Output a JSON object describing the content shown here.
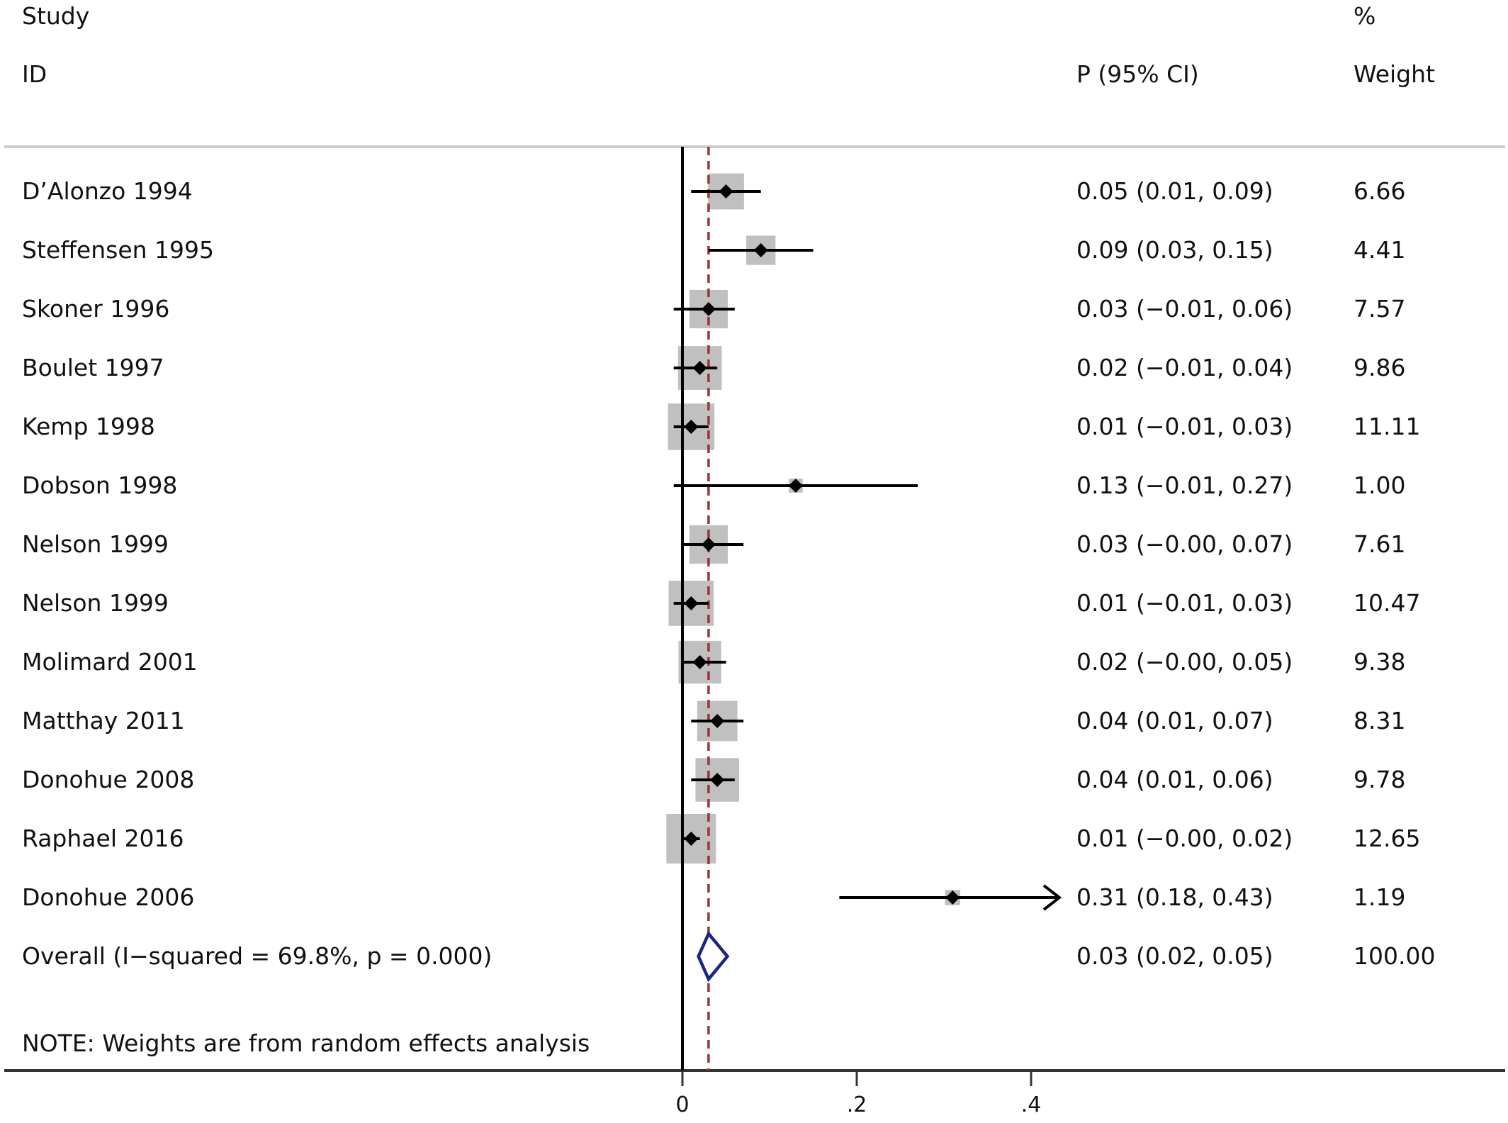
{
  "headers": {
    "study_top": "Study",
    "study_bottom": "ID",
    "ci": "P (95% CI)",
    "weight_top": "%",
    "weight_bottom": "Weight"
  },
  "note": "NOTE: Weights are from random effects analysis",
  "chart_data": {
    "type": "forest",
    "xlim": [
      0,
      0.4
    ],
    "xticks": [
      {
        "value": 0,
        "label": "0"
      },
      {
        "value": 0.2,
        "label": ".2"
      },
      {
        "value": 0.4,
        "label": ".4"
      }
    ],
    "reference_line": 0,
    "overall_line": 0.03,
    "studies": [
      {
        "label": "D’Alonzo 1994",
        "p": 0.05,
        "lo": 0.01,
        "hi": 0.09,
        "ci_text": "0.05 (0.01, 0.09)",
        "weight": 6.66,
        "weight_text": "6.66"
      },
      {
        "label": "Steffensen 1995",
        "p": 0.09,
        "lo": 0.03,
        "hi": 0.15,
        "ci_text": "0.09 (0.03, 0.15)",
        "weight": 4.41,
        "weight_text": "4.41"
      },
      {
        "label": "Skoner 1996",
        "p": 0.03,
        "lo": -0.01,
        "hi": 0.06,
        "ci_text": "0.03 (−0.01, 0.06)",
        "weight": 7.57,
        "weight_text": "7.57"
      },
      {
        "label": "Boulet 1997",
        "p": 0.02,
        "lo": -0.01,
        "hi": 0.04,
        "ci_text": "0.02 (−0.01, 0.04)",
        "weight": 9.86,
        "weight_text": "9.86"
      },
      {
        "label": "Kemp 1998",
        "p": 0.01,
        "lo": -0.01,
        "hi": 0.03,
        "ci_text": "0.01 (−0.01, 0.03)",
        "weight": 11.11,
        "weight_text": "11.11"
      },
      {
        "label": "Dobson 1998",
        "p": 0.13,
        "lo": -0.01,
        "hi": 0.27,
        "ci_text": "0.13 (−0.01, 0.27)",
        "weight": 1.0,
        "weight_text": "1.00"
      },
      {
        "label": "Nelson 1999",
        "p": 0.03,
        "lo": -0.0,
        "hi": 0.07,
        "ci_text": "0.03 (−0.00, 0.07)",
        "weight": 7.61,
        "weight_text": "7.61"
      },
      {
        "label": "Nelson 1999",
        "p": 0.01,
        "lo": -0.01,
        "hi": 0.03,
        "ci_text": "0.01 (−0.01, 0.03)",
        "weight": 10.47,
        "weight_text": "10.47"
      },
      {
        "label": "Molimard 2001",
        "p": 0.02,
        "lo": -0.0,
        "hi": 0.05,
        "ci_text": "0.02 (−0.00, 0.05)",
        "weight": 9.38,
        "weight_text": "9.38"
      },
      {
        "label": "Matthay 2011",
        "p": 0.04,
        "lo": 0.01,
        "hi": 0.07,
        "ci_text": "0.04 (0.01, 0.07)",
        "weight": 8.31,
        "weight_text": "8.31"
      },
      {
        "label": "Donohue 2008",
        "p": 0.04,
        "lo": 0.01,
        "hi": 0.06,
        "ci_text": "0.04 (0.01, 0.06)",
        "weight": 9.78,
        "weight_text": "9.78"
      },
      {
        "label": "Raphael 2016",
        "p": 0.01,
        "lo": -0.0,
        "hi": 0.02,
        "ci_text": "0.01 (−0.00, 0.02)",
        "weight": 12.65,
        "weight_text": "12.65"
      },
      {
        "label": "Donohue 2006",
        "p": 0.31,
        "lo": 0.18,
        "hi": 0.43,
        "ci_text": "0.31 (0.18, 0.43)",
        "weight": 1.19,
        "weight_text": "1.19",
        "truncated_high": true
      }
    ],
    "overall": {
      "label": "Overall  (I−squared = 69.8%, p = 0.000)",
      "p": 0.03,
      "lo": 0.02,
      "hi": 0.05,
      "ci_text": "0.03 (0.02, 0.05)",
      "weight_text": "100.00"
    },
    "colors": {
      "box": "#c0c0c0",
      "line": "#000000",
      "overall_line": "#a0303a",
      "diamond": "#1a2680",
      "rule": "#cccccc",
      "axis": "#333333"
    }
  }
}
